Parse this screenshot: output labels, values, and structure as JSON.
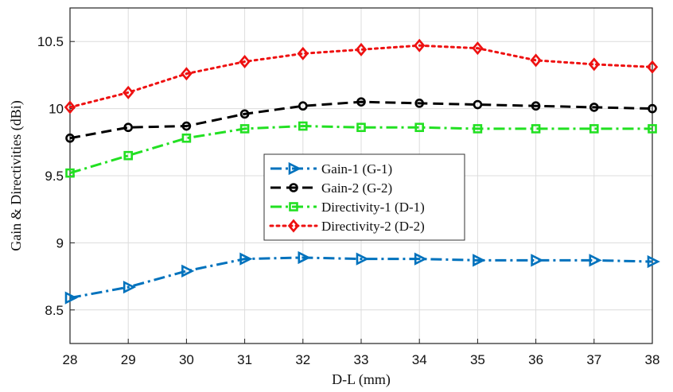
{
  "chart_data": {
    "type": "line",
    "xlabel": "D-L (mm)",
    "ylabel": "Gain & Directivities (dBi)",
    "xlim": [
      28,
      38
    ],
    "ylim": [
      8.25,
      10.75
    ],
    "x": [
      28,
      29,
      30,
      31,
      32,
      33,
      34,
      35,
      36,
      37,
      38
    ],
    "x_ticks": [
      28,
      29,
      30,
      31,
      32,
      33,
      34,
      35,
      36,
      37,
      38
    ],
    "y_ticks": [
      8.5,
      9,
      9.5,
      10,
      10.5
    ],
    "y_tick_labels": [
      "8.5",
      "9",
      "9.5",
      "10",
      "10.5"
    ],
    "grid": true,
    "legend_position": "center",
    "series": [
      {
        "name": "Gain-1 (G-1)",
        "color": "#0072BD",
        "line_style": "dash-dot",
        "marker": "triangle-right",
        "values": [
          8.59,
          8.67,
          8.79,
          8.88,
          8.89,
          8.88,
          8.88,
          8.87,
          8.87,
          8.87,
          8.86
        ]
      },
      {
        "name": "Gain-2 (G-2)",
        "color": "#000000",
        "line_style": "dashed",
        "marker": "circle",
        "values": [
          9.78,
          9.86,
          9.87,
          9.96,
          10.02,
          10.05,
          10.04,
          10.03,
          10.02,
          10.01,
          10.0
        ]
      },
      {
        "name": "Directivity-1 (D-1)",
        "color": "#22E022",
        "line_style": "dash-dot",
        "marker": "square",
        "values": [
          9.52,
          9.65,
          9.78,
          9.85,
          9.87,
          9.86,
          9.86,
          9.85,
          9.85,
          9.85,
          9.85
        ]
      },
      {
        "name": "Directivity-2 (D-2)",
        "color": "#EE1111",
        "line_style": "dotted",
        "marker": "diamond",
        "values": [
          10.01,
          10.12,
          10.26,
          10.35,
          10.41,
          10.44,
          10.47,
          10.45,
          10.36,
          10.33,
          10.31
        ]
      }
    ]
  }
}
